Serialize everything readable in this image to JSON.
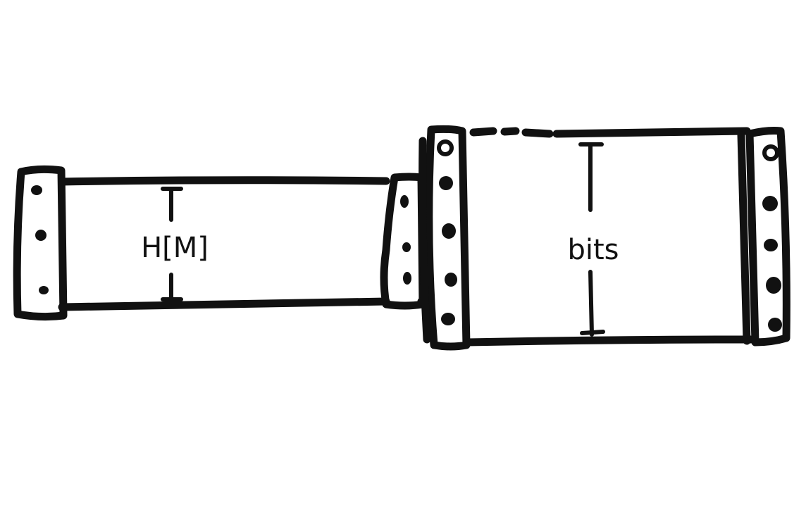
{
  "diagram": {
    "small_tape": {
      "label": "H[M]"
    },
    "large_tape": {
      "label": "bits"
    }
  }
}
